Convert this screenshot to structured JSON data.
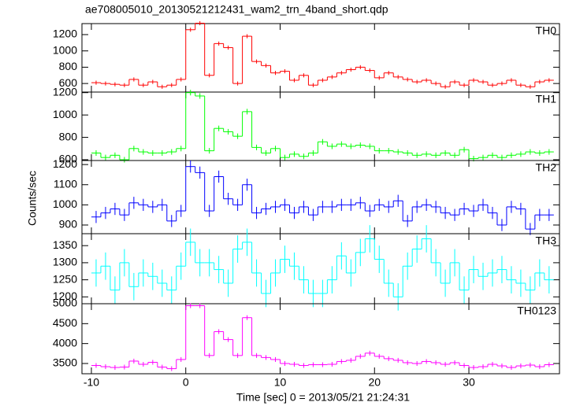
{
  "chart_data": {
    "type": "histogram-panels",
    "title": "ae708005010_20130521212431_wam2_trn_4band_short.qdp",
    "xlabel": "Time [sec] 0 = 2013/05/21 21:24:31",
    "ylabel": "Counts/sec",
    "xlim": [
      -11,
      39.6
    ],
    "xticks": [
      -10,
      0,
      10,
      20,
      30
    ],
    "bins": [
      -10,
      -9,
      -8,
      -7,
      -6,
      -5,
      -4,
      -3,
      -2,
      -1,
      0,
      1,
      2,
      3,
      4,
      5,
      6,
      7,
      8,
      9,
      10,
      11,
      12,
      13,
      14,
      15,
      16,
      17,
      18,
      19,
      20,
      21,
      22,
      23,
      24,
      25,
      26,
      27,
      28,
      29,
      30,
      31,
      32,
      33,
      34,
      35,
      36,
      37,
      38,
      39
    ],
    "series": [
      {
        "name": "TH0",
        "color": "#ff0000",
        "error": 25,
        "ylim": [
          495,
          1335
        ],
        "yticks": [
          600,
          800,
          1000,
          1200
        ],
        "values": [
          610,
          600,
          590,
          580,
          650,
          580,
          620,
          560,
          580,
          650,
          1260,
          1340,
          700,
          1090,
          1040,
          600,
          1180,
          870,
          820,
          730,
          750,
          640,
          700,
          580,
          640,
          680,
          730,
          770,
          800,
          760,
          670,
          730,
          680,
          650,
          620,
          640,
          600,
          560,
          620,
          580,
          640,
          620,
          580,
          600,
          640,
          580,
          560,
          620,
          640
        ]
      },
      {
        "name": "TH1",
        "color": "#00ff00",
        "error": 25,
        "ylim": [
          593,
          1205
        ],
        "yticks": [
          600,
          800,
          1000,
          1200
        ],
        "values": [
          660,
          620,
          640,
          600,
          700,
          670,
          660,
          660,
          670,
          700,
          1200,
          1170,
          680,
          880,
          850,
          810,
          1030,
          710,
          660,
          700,
          620,
          650,
          630,
          660,
          760,
          720,
          740,
          720,
          730,
          720,
          680,
          680,
          670,
          660,
          640,
          650,
          640,
          660,
          640,
          690,
          610,
          620,
          640,
          620,
          640,
          650,
          670,
          660,
          670
        ]
      },
      {
        "name": "TH2",
        "color": "#0000ff",
        "error": 30,
        "ylim": [
          857,
          1220
        ],
        "yticks": [
          900,
          1000,
          1100,
          1200
        ],
        "values": [
          940,
          960,
          980,
          950,
          1010,
          1000,
          990,
          1000,
          920,
          970,
          1190,
          1160,
          970,
          1140,
          1030,
          1000,
          1100,
          960,
          980,
          990,
          1000,
          960,
          990,
          950,
          990,
          990,
          1000,
          1000,
          1010,
          970,
          1000,
          990,
          1020,
          920,
          990,
          1000,
          990,
          960,
          950,
          980,
          970,
          1000,
          960,
          900,
          990,
          980,
          880,
          950,
          950
        ]
      },
      {
        "name": "TH3",
        "color": "#00ffff",
        "error": 40,
        "ylim": [
          1180,
          1385
        ],
        "yticks": [
          1200,
          1250,
          1300,
          1350
        ],
        "values": [
          1270,
          1290,
          1220,
          1300,
          1230,
          1270,
          1260,
          1240,
          1220,
          1290,
          1360,
          1300,
          1300,
          1280,
          1240,
          1340,
          1360,
          1270,
          1210,
          1270,
          1310,
          1290,
          1250,
          1210,
          1210,
          1250,
          1320,
          1270,
          1330,
          1370,
          1310,
          1240,
          1200,
          1290,
          1340,
          1370,
          1300,
          1240,
          1300,
          1220,
          1280,
          1260,
          1270,
          1280,
          1250,
          1240,
          1220,
          1270,
          1250
        ]
      },
      {
        "name": "TH0123",
        "color": "#ff00ff",
        "error": 60,
        "ylim": [
          3243,
          5000
        ],
        "yticks": [
          3500,
          4000,
          4500,
          5000
        ],
        "values": [
          3450,
          3420,
          3400,
          3410,
          3560,
          3480,
          3530,
          3410,
          3370,
          3600,
          4950,
          4950,
          3700,
          4300,
          4100,
          3700,
          4650,
          3700,
          3650,
          3600,
          3500,
          3480,
          3450,
          3470,
          3470,
          3480,
          3550,
          3580,
          3680,
          3760,
          3680,
          3620,
          3580,
          3520,
          3500,
          3550,
          3520,
          3480,
          3520,
          3450,
          3400,
          3420,
          3480,
          3440,
          3400,
          3440,
          3460,
          3420,
          3470
        ]
      }
    ]
  }
}
